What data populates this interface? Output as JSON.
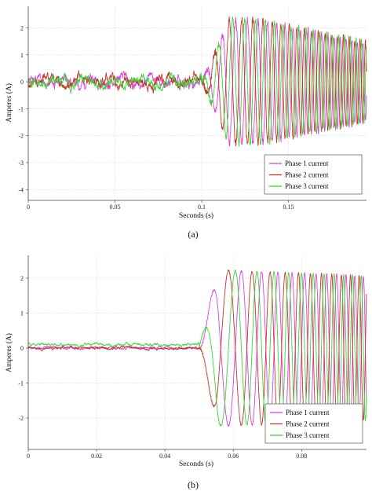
{
  "chart_data": [
    {
      "type": "line",
      "caption": "(a)",
      "xlabel": "Seconds (s)",
      "ylabel": "Amperes (A)",
      "xlim": [
        0,
        0.195
      ],
      "ylim": [
        -4.4,
        2.8
      ],
      "x_ticks": [
        "0",
        "0.05",
        "0.1",
        "0.15"
      ],
      "x_tick_values": [
        0,
        0.05,
        0.1,
        0.15
      ],
      "y_ticks": [
        "-4",
        "-3",
        "-2",
        "-1",
        "0",
        "1",
        "2"
      ],
      "y_tick_values": [
        -4,
        -3,
        -2,
        -1,
        0,
        1,
        2
      ],
      "grid": true,
      "legend_position": "bottom-right",
      "fault_start": 0.1,
      "signal": {
        "pre_fault_amplitude": 0.12,
        "peak_amplitude": 2.3,
        "start_frequency_hz": 90,
        "end_frequency_hz": 330
      },
      "series": [
        {
          "name": "Phase 1 current",
          "color": "#e040e0",
          "phase_deg": 0
        },
        {
          "name": "Phase 2 current",
          "color": "#c83228",
          "phase_deg": 180
        },
        {
          "name": "Phase 3 current",
          "color": "#38d838",
          "phase_deg": 90
        }
      ]
    },
    {
      "type": "line",
      "caption": "(b)",
      "xlabel": "Seconds (s)",
      "ylabel": "Amperes (A)",
      "xlim": [
        0,
        0.099
      ],
      "ylim": [
        -2.9,
        2.65
      ],
      "x_ticks": [
        "0",
        "0.02",
        "0.04",
        "0.06",
        "0.08"
      ],
      "x_tick_values": [
        0,
        0.02,
        0.04,
        0.06,
        0.08
      ],
      "y_ticks": [
        "-2",
        "-1",
        "0",
        "1",
        "2"
      ],
      "y_tick_values": [
        -2,
        -1,
        0,
        1,
        2
      ],
      "grid": true,
      "legend_position": "bottom-right",
      "fault_start": 0.05,
      "signal": {
        "pre_fault_amplitude": 0.04,
        "peak_amplitude": 2.25,
        "start_frequency_hz": 55,
        "end_frequency_hz": 420
      },
      "series": [
        {
          "name": "Phase 1 current",
          "color": "#e040e0",
          "phase_deg": 0
        },
        {
          "name": "Phase 2 current",
          "color": "#c83228",
          "phase_deg": 180
        },
        {
          "name": "Phase 3 current",
          "color": "#38d838",
          "phase_deg": 90
        }
      ]
    }
  ]
}
